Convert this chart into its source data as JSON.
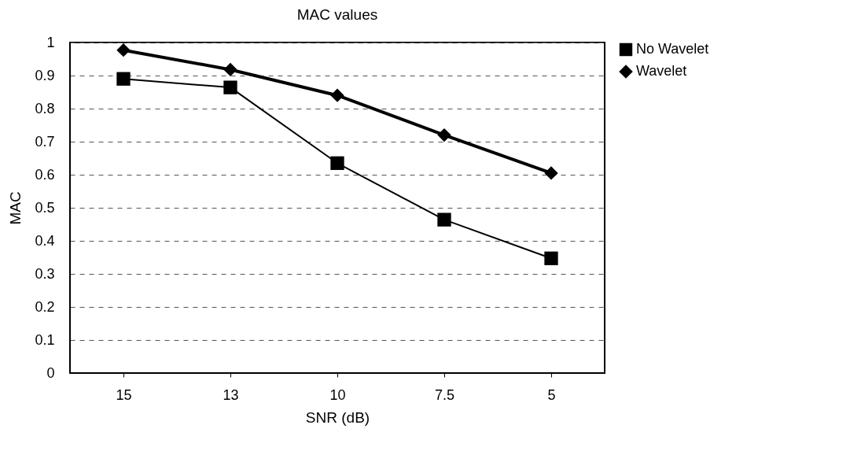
{
  "chart_data": {
    "type": "line",
    "title": "MAC values",
    "xlabel": "SNR (dB)",
    "ylabel": "MAC",
    "categories": [
      "15",
      "13",
      "10",
      "7.5",
      "5"
    ],
    "series": [
      {
        "name": "No Wavelet",
        "color": "#000000",
        "marker": "square",
        "values": [
          0.89,
          0.864,
          0.635,
          0.464,
          0.347
        ]
      },
      {
        "name": "Wavelet",
        "color": "#000000",
        "marker": "diamond",
        "values": [
          0.977,
          0.918,
          0.84,
          0.72,
          0.605
        ]
      }
    ],
    "ylim": [
      0,
      1
    ],
    "yticks": [
      0,
      0.1,
      0.2,
      0.3,
      0.4,
      0.5,
      0.6,
      0.7,
      0.8,
      0.9,
      1
    ],
    "grid": "y",
    "legend": "right",
    "line_style": "solid"
  }
}
